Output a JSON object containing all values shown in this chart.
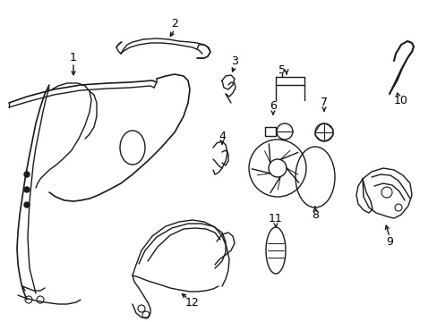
{
  "background_color": "#ffffff",
  "line_color": "#1a1a1a",
  "label_color": "#000000",
  "fig_width": 4.89,
  "fig_height": 3.6,
  "dpi": 100,
  "lw": 1.0
}
